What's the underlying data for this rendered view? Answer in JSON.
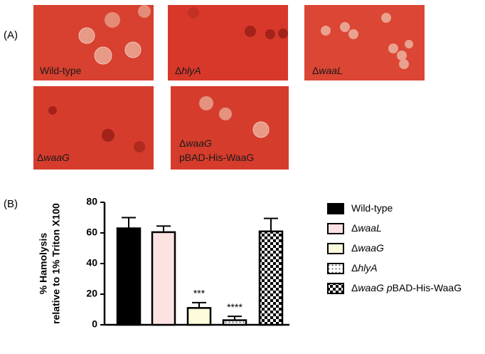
{
  "panel_a": {
    "letter": "(A)",
    "panels": [
      {
        "lines": [
          [
            "Wild-type"
          ]
        ]
      },
      {
        "lines": [
          [
            "Δ",
            "hlyA"
          ]
        ]
      },
      {
        "lines": [
          [
            "Δ",
            "waaL"
          ]
        ]
      },
      {
        "lines": [
          [
            "Δ",
            "waaG"
          ]
        ]
      },
      {
        "lines": [
          [
            "Δ",
            "waaG"
          ],
          [
            "pBAD-His-WaaG"
          ]
        ]
      }
    ]
  },
  "panel_b": {
    "letter": "(B)"
  },
  "chart_data": {
    "type": "bar",
    "y_label": [
      "% Hamolysis",
      "relative to 1%  Triton X100"
    ],
    "categories": [
      [
        "Wild-type"
      ],
      [
        "Δ",
        "waaL"
      ],
      [
        "Δ",
        "waaG"
      ],
      [
        "Δ",
        "hlyA"
      ],
      [
        "Δ",
        "waaG",
        " ",
        "p",
        "BAD-His-WaaG"
      ]
    ],
    "values": [
      63,
      60.5,
      11,
      3,
      61
    ],
    "errors": [
      7,
      4,
      3.5,
      2.5,
      8.5
    ],
    "significance": [
      null,
      null,
      "***",
      "****",
      null
    ],
    "fills": [
      "#000000",
      "#fde2e2",
      "#fdfbdc",
      "dots",
      "checker"
    ],
    "ylim": [
      0,
      80
    ],
    "yticks": [
      0,
      20,
      40,
      60,
      80
    ]
  }
}
